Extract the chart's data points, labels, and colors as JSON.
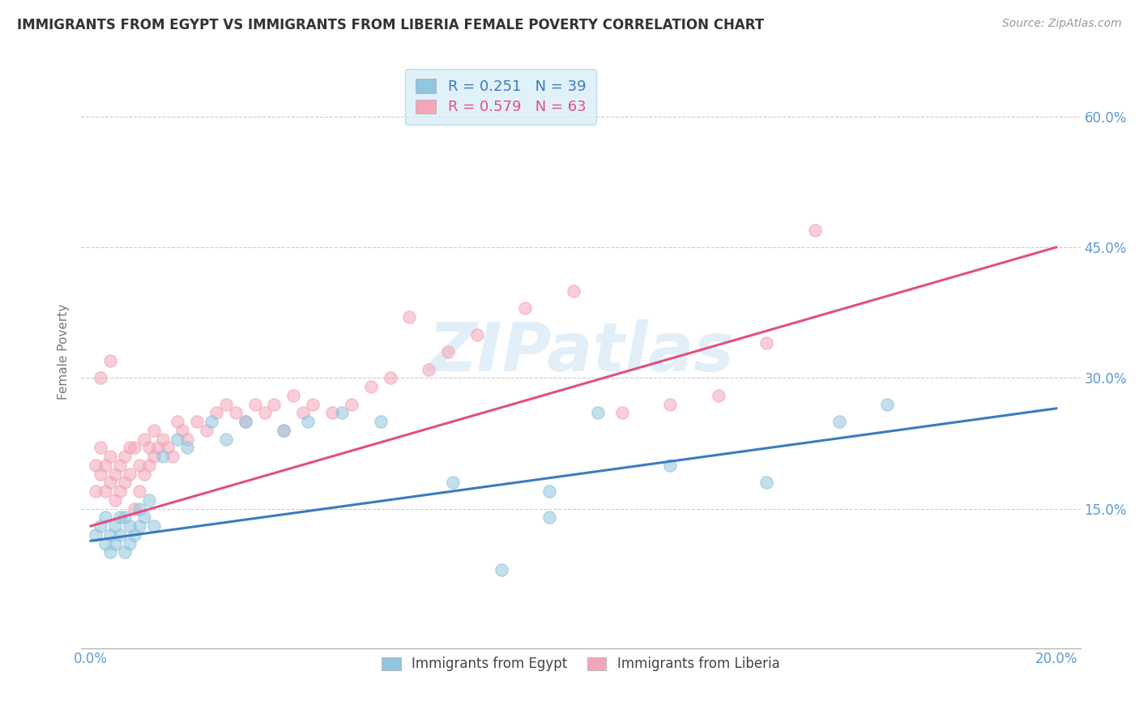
{
  "title": "IMMIGRANTS FROM EGYPT VS IMMIGRANTS FROM LIBERIA FEMALE POVERTY CORRELATION CHART",
  "source_text": "Source: ZipAtlas.com",
  "ylabel": "Female Poverty",
  "watermark": "ZIPatlas",
  "xlim": [
    -0.002,
    0.205
  ],
  "ylim": [
    -0.01,
    0.67
  ],
  "xticks": [
    0.0,
    0.2
  ],
  "xticklabels": [
    "0.0%",
    "20.0%"
  ],
  "yticks": [
    0.15,
    0.3,
    0.45,
    0.6
  ],
  "yticklabels": [
    "15.0%",
    "30.0%",
    "45.0%",
    "60.0%"
  ],
  "egypt_color": "#92c5de",
  "liberia_color": "#f4a6b8",
  "egypt_line_color": "#3a7bbf",
  "liberia_line_color": "#e05080",
  "egypt_R": 0.251,
  "egypt_N": 39,
  "liberia_R": 0.579,
  "liberia_N": 63,
  "egypt_scatter_x": [
    0.001,
    0.002,
    0.003,
    0.003,
    0.004,
    0.004,
    0.005,
    0.005,
    0.006,
    0.006,
    0.007,
    0.007,
    0.008,
    0.008,
    0.009,
    0.01,
    0.01,
    0.011,
    0.012,
    0.013,
    0.015,
    0.018,
    0.02,
    0.025,
    0.028,
    0.032,
    0.04,
    0.045,
    0.052,
    0.06,
    0.075,
    0.085,
    0.095,
    0.105,
    0.12,
    0.095,
    0.14,
    0.155,
    0.165
  ],
  "egypt_scatter_y": [
    0.12,
    0.13,
    0.11,
    0.14,
    0.12,
    0.1,
    0.13,
    0.11,
    0.12,
    0.14,
    0.14,
    0.1,
    0.13,
    0.11,
    0.12,
    0.15,
    0.13,
    0.14,
    0.16,
    0.13,
    0.21,
    0.23,
    0.22,
    0.25,
    0.23,
    0.25,
    0.24,
    0.25,
    0.26,
    0.25,
    0.18,
    0.08,
    0.17,
    0.26,
    0.2,
    0.14,
    0.18,
    0.25,
    0.27
  ],
  "liberia_scatter_x": [
    0.001,
    0.001,
    0.002,
    0.002,
    0.003,
    0.003,
    0.004,
    0.004,
    0.005,
    0.005,
    0.006,
    0.006,
    0.007,
    0.007,
    0.008,
    0.008,
    0.009,
    0.009,
    0.01,
    0.01,
    0.011,
    0.011,
    0.012,
    0.012,
    0.013,
    0.013,
    0.014,
    0.015,
    0.016,
    0.017,
    0.018,
    0.019,
    0.02,
    0.022,
    0.024,
    0.026,
    0.028,
    0.03,
    0.032,
    0.034,
    0.036,
    0.038,
    0.04,
    0.042,
    0.044,
    0.046,
    0.05,
    0.054,
    0.058,
    0.062,
    0.066,
    0.07,
    0.074,
    0.08,
    0.09,
    0.1,
    0.11,
    0.12,
    0.13,
    0.14,
    0.002,
    0.004,
    0.15
  ],
  "liberia_scatter_y": [
    0.2,
    0.17,
    0.19,
    0.22,
    0.2,
    0.17,
    0.21,
    0.18,
    0.19,
    0.16,
    0.2,
    0.17,
    0.21,
    0.18,
    0.22,
    0.19,
    0.22,
    0.15,
    0.2,
    0.17,
    0.23,
    0.19,
    0.22,
    0.2,
    0.24,
    0.21,
    0.22,
    0.23,
    0.22,
    0.21,
    0.25,
    0.24,
    0.23,
    0.25,
    0.24,
    0.26,
    0.27,
    0.26,
    0.25,
    0.27,
    0.26,
    0.27,
    0.24,
    0.28,
    0.26,
    0.27,
    0.26,
    0.27,
    0.29,
    0.3,
    0.37,
    0.31,
    0.33,
    0.35,
    0.38,
    0.4,
    0.26,
    0.27,
    0.28,
    0.34,
    0.3,
    0.32,
    0.47
  ],
  "egypt_trend_x": [
    0.0,
    0.2
  ],
  "egypt_trend_y": [
    0.113,
    0.265
  ],
  "liberia_trend_x": [
    0.0,
    0.2
  ],
  "liberia_trend_y": [
    0.13,
    0.45
  ],
  "background_color": "#ffffff",
  "grid_color": "#cccccc",
  "title_color": "#333333",
  "axis_label_color": "#777777",
  "tick_color": "#5b9bd5",
  "legend_box_color": "#daeef8",
  "legend_border_color": "#b8d4e8"
}
